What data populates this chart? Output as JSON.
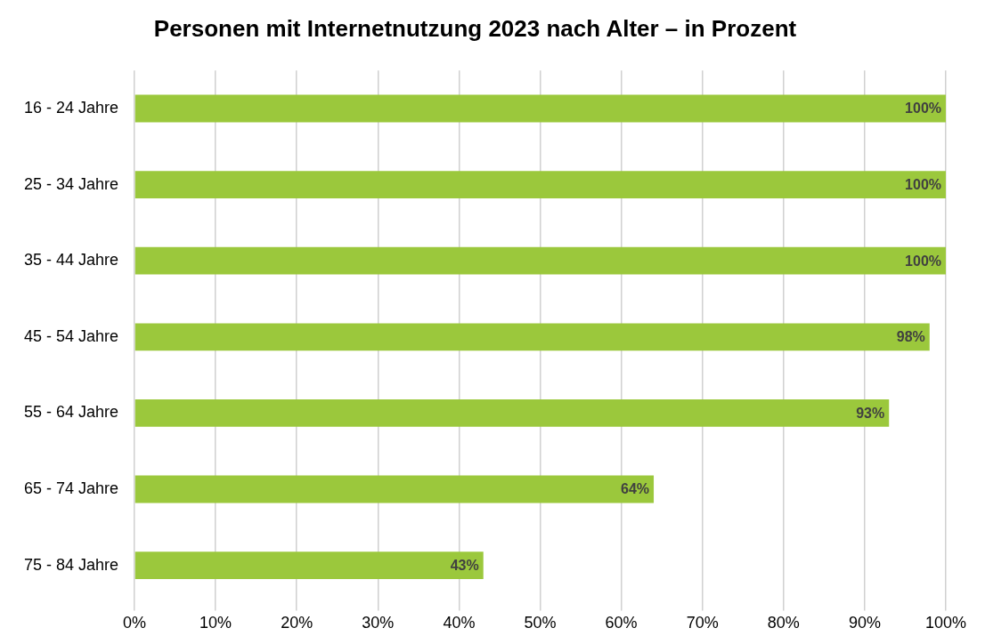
{
  "chart_data": {
    "type": "bar",
    "orientation": "horizontal",
    "title": "Personen mit Internetnutzung 2023 nach Alter – in Prozent",
    "categories": [
      "16 - 24 Jahre",
      "25 - 34 Jahre",
      "35 - 44 Jahre",
      "45 - 54 Jahre",
      "55 - 64 Jahre",
      "65 - 74 Jahre",
      "75 - 84 Jahre"
    ],
    "values": [
      100,
      100,
      100,
      98,
      93,
      64,
      43
    ],
    "value_labels": [
      "100%",
      "100%",
      "100%",
      "98%",
      "93%",
      "64%",
      "43%"
    ],
    "color": "#9bc83c",
    "xlim": [
      0,
      100
    ],
    "xticks": [
      {
        "value": 0,
        "label": "0%"
      },
      {
        "value": 10,
        "label": "10%"
      },
      {
        "value": 20,
        "label": "20%"
      },
      {
        "value": 30,
        "label": "30%"
      },
      {
        "value": 40,
        "label": "40%"
      },
      {
        "value": 50,
        "label": "50%"
      },
      {
        "value": 60,
        "label": "60%"
      },
      {
        "value": 70,
        "label": "70%"
      },
      {
        "value": 80,
        "label": "80%"
      },
      {
        "value": 90,
        "label": "90%"
      },
      {
        "value": 100,
        "label": "100%"
      }
    ],
    "grid": "x",
    "legend": false
  }
}
